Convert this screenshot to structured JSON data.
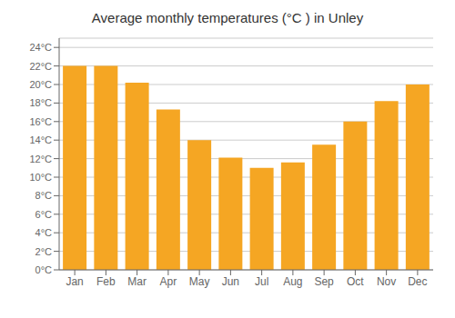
{
  "chart_data": {
    "type": "bar",
    "title": "Average monthly temperatures (°C ) in Unley",
    "categories": [
      "Jan",
      "Feb",
      "Mar",
      "Apr",
      "May",
      "Jun",
      "Jul",
      "Aug",
      "Sep",
      "Oct",
      "Nov",
      "Dec"
    ],
    "values": [
      22.0,
      22.0,
      20.2,
      17.3,
      14.0,
      12.1,
      11.0,
      11.6,
      13.5,
      16.0,
      18.2,
      20.0
    ],
    "color": "#F5A623",
    "ylim": [
      0,
      25
    ],
    "yticks": [
      {
        "value": 0,
        "label": "0°C"
      },
      {
        "value": 2,
        "label": "2°C"
      },
      {
        "value": 4,
        "label": "4°C"
      },
      {
        "value": 6,
        "label": "6°C"
      },
      {
        "value": 8,
        "label": "8°C"
      },
      {
        "value": 10,
        "label": "10°C"
      },
      {
        "value": 12,
        "label": "12°C"
      },
      {
        "value": 14,
        "label": "14°C"
      },
      {
        "value": 16,
        "label": "16°C"
      },
      {
        "value": 18,
        "label": "18°C"
      },
      {
        "value": 20,
        "label": "20°C"
      },
      {
        "value": 22,
        "label": "22°C"
      },
      {
        "value": 24,
        "label": "24°C"
      }
    ],
    "grid": true
  }
}
